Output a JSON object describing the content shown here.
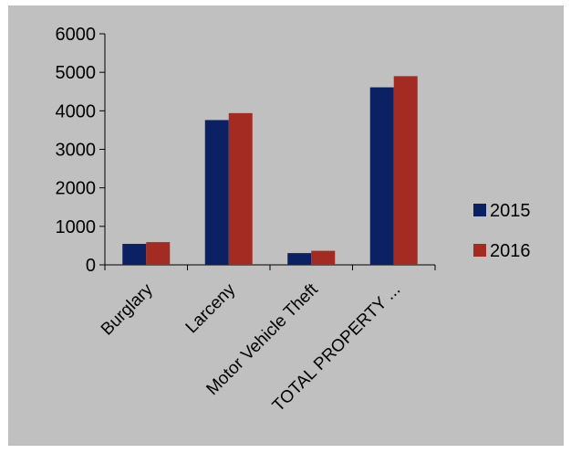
{
  "chart_data": {
    "type": "bar",
    "categories": [
      "Burglary",
      "Larceny",
      "Motor Vehicle Theft",
      "TOTAL PROPERTY ..."
    ],
    "series": [
      {
        "name": "2015",
        "values": [
          545,
          3760,
          305,
          4610
        ],
        "color": "#0b2163"
      },
      {
        "name": "2016",
        "values": [
          590,
          3940,
          365,
          4900
        ],
        "color": "#a32b21"
      }
    ],
    "y_ticks": [
      "0",
      "1000",
      "2000",
      "3000",
      "4000",
      "5000",
      "6000"
    ],
    "ylim": [
      0,
      6000
    ],
    "grid": false,
    "legend": "right",
    "background": "#c0c0c0"
  }
}
